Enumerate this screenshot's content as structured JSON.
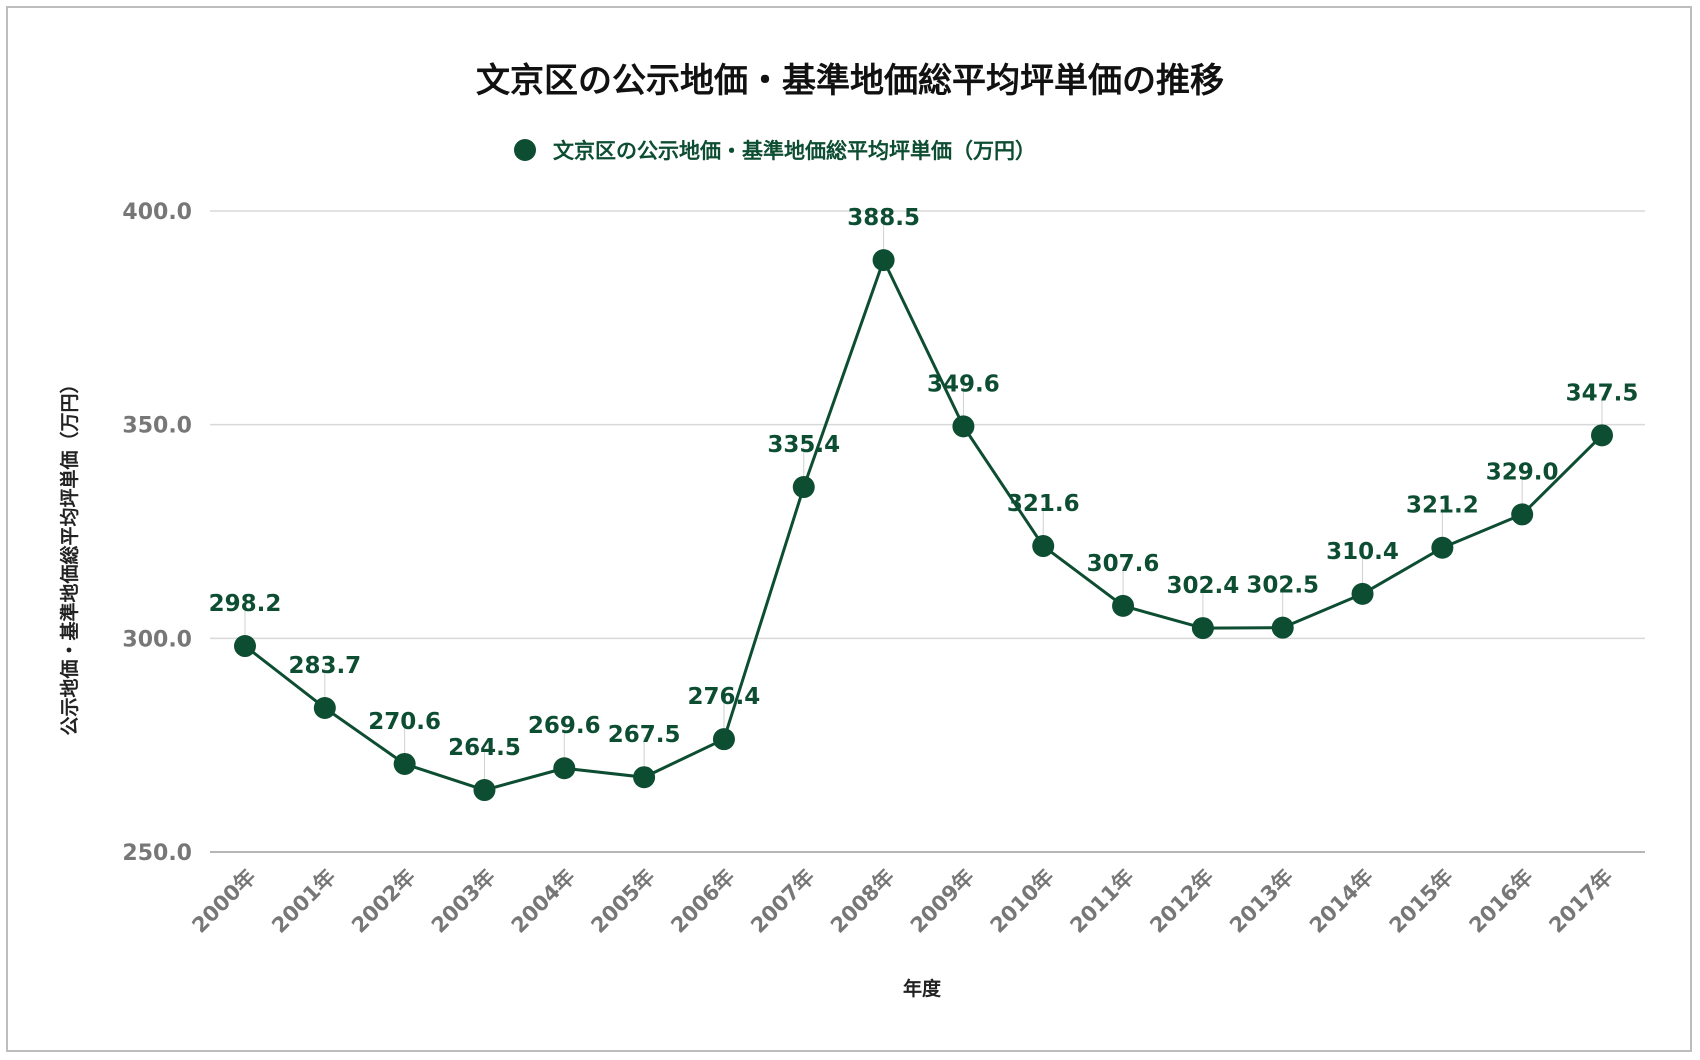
{
  "chart_data": {
    "type": "line",
    "title": "文京区の公示地価・基準地価総平均坪単価の推移",
    "legend": "文京区の公示地価・基準地価総平均坪単価（万円）",
    "legend_position": "top-center",
    "xlabel": "年度",
    "ylabel": "公示地価・基準地価総平均坪単価（万円）",
    "ylim": [
      250,
      400
    ],
    "yticks": [
      250,
      300,
      350,
      400
    ],
    "ytick_labels": [
      "250.0",
      "300.0",
      "350.0",
      "400.0"
    ],
    "grid": true,
    "series_color": "#0d4d32",
    "categories": [
      "2000年",
      "2001年",
      "2002年",
      "2003年",
      "2004年",
      "2005年",
      "2006年",
      "2007年",
      "2008年",
      "2009年",
      "2010年",
      "2011年",
      "2012年",
      "2013年",
      "2014年",
      "2015年",
      "2016年",
      "2017年"
    ],
    "values": [
      298.2,
      283.7,
      270.6,
      264.5,
      269.6,
      267.5,
      276.4,
      335.4,
      388.5,
      349.6,
      321.6,
      307.6,
      302.4,
      302.5,
      310.4,
      321.2,
      329.0,
      347.5
    ],
    "value_labels": [
      "298.2",
      "283.7",
      "270.6",
      "264.5",
      "269.6",
      "267.5",
      "276.4",
      "335.4",
      "388.5",
      "349.6",
      "321.6",
      "307.6",
      "302.4",
      "302.5",
      "310.4",
      "321.2",
      "329.0",
      "347.5"
    ]
  }
}
